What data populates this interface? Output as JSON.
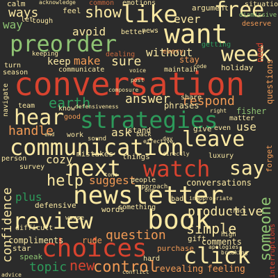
{
  "colors": {
    "background": "#2b2b2b",
    "red": "#d9432f",
    "green": "#2d9a5a",
    "light_green": "#8fc473",
    "yellow": "#fbe9a3",
    "orange": "#f39b55",
    "brown": "#c8683e",
    "dark_red": "#a8352a"
  },
  "words": {
    "conversation": "conversation",
    "strategies": "strategies",
    "want": "want",
    "communication": "communication",
    "newsletter": "newsletter",
    "watch": "watch",
    "preorder": "preorder",
    "book": "book",
    "choices": "choices",
    "like": "like",
    "next": "next",
    "free": "free",
    "review": "review",
    "click": "click",
    "leave": "leave",
    "week": "week",
    "say": "say",
    "hear": "hear",
    "show": "show",
    "earth": "earth",
    "answer": "answer",
    "respond": "respond",
    "help": "help",
    "confidence": "confidence",
    "someone": "someone",
    "question": "question",
    "simple": "simple",
    "productive": "productive",
    "ways": "ways",
    "avoid": "avoid",
    "way": "way",
    "cozy": "cozy",
    "control": "control",
    "new": "new",
    "topic": "topic",
    "suggest": "suggest",
    "handle": "handle",
    "make": "make",
    "sure": "sure",
    "ask": "ask",
    "without": "without",
    "keep": "keep",
    "ever": "ever",
    "use": "use",
    "comments": "comments",
    "revealing": "revealing",
    "feeling": "feeling",
    "plus": "plus",
    "compliments": "compliments",
    "calm": "calm",
    "feel": "feel",
    "emotions": "emotions",
    "argument": "argument",
    "situation": "situation",
    "common": "common",
    "tough": "tough",
    "let": "let",
    "better": "better",
    "news": "news",
    "need": "need",
    "deserve": "deserve",
    "dismissive": "dismissive",
    "every": "every",
    "getting": "getting",
    "dealing": "dealing",
    "stay": "stay",
    "holiday": "holiday",
    "keeping": "keeping",
    "communicate": "communicate",
    "maintain": "maintain",
    "share": "share",
    "phrases": "phrases",
    "fisher": "fisher",
    "matter": "matter",
    "give": "give",
    "team": "team",
    "good": "good",
    "know": "know",
    "work": "work",
    "stand": "stand",
    "things": "things",
    "luxury": "luxury",
    "person": "person",
    "survey": "survey",
    "conversations": "conversations",
    "people": "people",
    "mistakes": "mistakes",
    "defensive": "defensive",
    "words": "words",
    "something": "something",
    "gift": "gift",
    "rude": "rude",
    "purchase": "purchase",
    "star": "star",
    "speak": "speak",
    "difficult": "difficult",
    "hard": "hard",
    "questions": "questions",
    "interruptions": "interruptions",
    "forget": "forget",
    "turn": "turn",
    "season": "season",
    "navigate": "navigate",
    "sound": "sound",
    "back": "back",
    "worse": "worse",
    "approach": "approach",
    "high": "high",
    "apologies": "apologies",
    "effective": "effective",
    "even": "even",
    "bad": "bad",
    "advice": "advice",
    "conflict": "conflict",
    "breaking": "breaking",
    "acknowledge": "acknowledge",
    "post": "post",
    "composure": "composure",
    "defensiveness": "defensiveness",
    "directly": "directly",
    "inappropriate": "inappropriate",
    "track": "track",
    "code": "code",
    "end": "end",
    "voice": "voice",
    "one": "one",
    "day": "day",
    "right": "right",
    "tone": "tone"
  }
}
